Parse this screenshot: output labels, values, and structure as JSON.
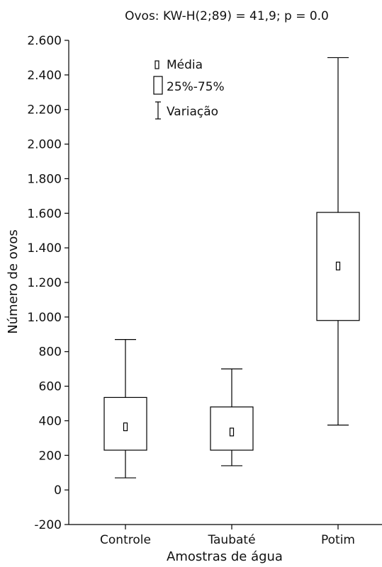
{
  "chart_data": {
    "type": "boxplot",
    "title": "Ovos: KW-H(2;89) = 41,9; p = 0.0",
    "xlabel": "Amostras de água",
    "ylabel": "Número de ovos",
    "ylim": [
      -200,
      2600
    ],
    "yticks": [
      -200,
      0,
      200,
      400,
      600,
      800,
      1000,
      1200,
      1400,
      1600,
      1800,
      2000,
      2200,
      2400,
      2600
    ],
    "ytick_labels": [
      "-200",
      "0",
      "200",
      "400",
      "600",
      "800",
      "1.000",
      "1.200",
      "1.400",
      "1.600",
      "1.800",
      "2.000",
      "2.200",
      "2.400",
      "2.600"
    ],
    "categories": [
      "Controle",
      "Taubaté",
      "Potim"
    ],
    "series": [
      {
        "category": "Controle",
        "min": 70,
        "q1": 230,
        "median": 365,
        "q3": 535,
        "max": 870
      },
      {
        "category": "Taubaté",
        "min": 140,
        "q1": 230,
        "median": 335,
        "q3": 480,
        "max": 700
      },
      {
        "category": "Potim",
        "min": 375,
        "q1": 980,
        "median": 1295,
        "q3": 1605,
        "max": 2500
      }
    ],
    "legend": {
      "position": "top-center",
      "items": [
        {
          "symbol": "median",
          "label": "Média"
        },
        {
          "symbol": "box",
          "label": "25%-75%"
        },
        {
          "symbol": "range",
          "label": "Variação"
        }
      ]
    },
    "grid": false
  }
}
